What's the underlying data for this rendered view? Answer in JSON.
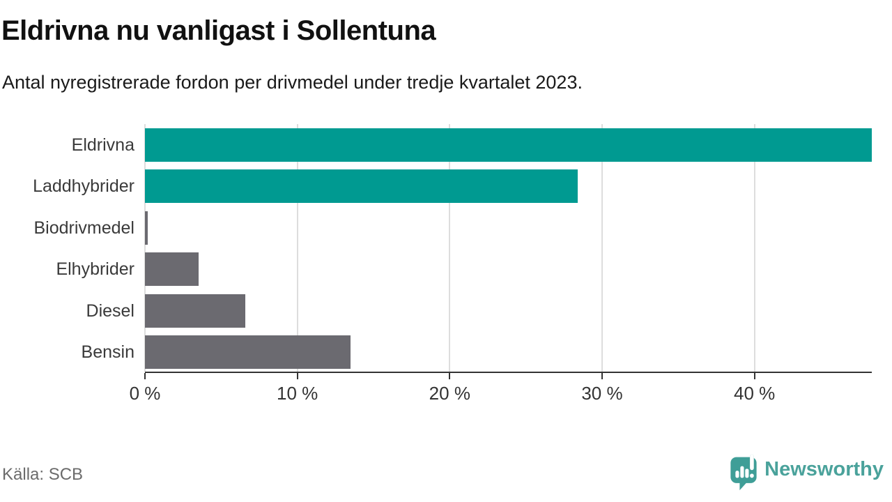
{
  "header": {
    "title": "Eldrivna nu vanligast i Sollentuna",
    "subtitle": "Antal nyregistrerade fordon per drivmedel under tredje kvartalet 2023."
  },
  "chart_data": {
    "type": "bar",
    "orientation": "horizontal",
    "title": "Eldrivna nu vanligast i Sollentuna",
    "subtitle": "Antal nyregistrerade fordon per drivmedel under tredje kvartalet 2023.",
    "xlabel": "",
    "ylabel": "",
    "unit": "%",
    "categories": [
      "Eldrivna",
      "Laddhybrider",
      "Biodrivmedel",
      "Elhybrider",
      "Diesel",
      "Bensin"
    ],
    "values": [
      47.7,
      28.4,
      0.2,
      3.5,
      6.6,
      13.5
    ],
    "bar_colors": [
      "#009a91",
      "#009a91",
      "#6b6a70",
      "#6b6a70",
      "#6b6a70",
      "#6b6a70"
    ],
    "xlim": [
      0,
      47.7
    ],
    "xticks": [
      0,
      10,
      20,
      30,
      40
    ],
    "xtick_labels": [
      "0 %",
      "10 %",
      "20 %",
      "30 %",
      "40 %"
    ],
    "grid": "vertical-gridlines-behind-bars",
    "legend": "none"
  },
  "footer": {
    "source": "Källa: SCB",
    "brand": "Newsworthy"
  },
  "colors": {
    "bar_teal": "#009a91",
    "bar_gray": "#6b6a70",
    "axis": "#333333",
    "gridline": "#dddddd",
    "category_label": "#3a3a3a",
    "brand_teal": "#4aa29b"
  }
}
